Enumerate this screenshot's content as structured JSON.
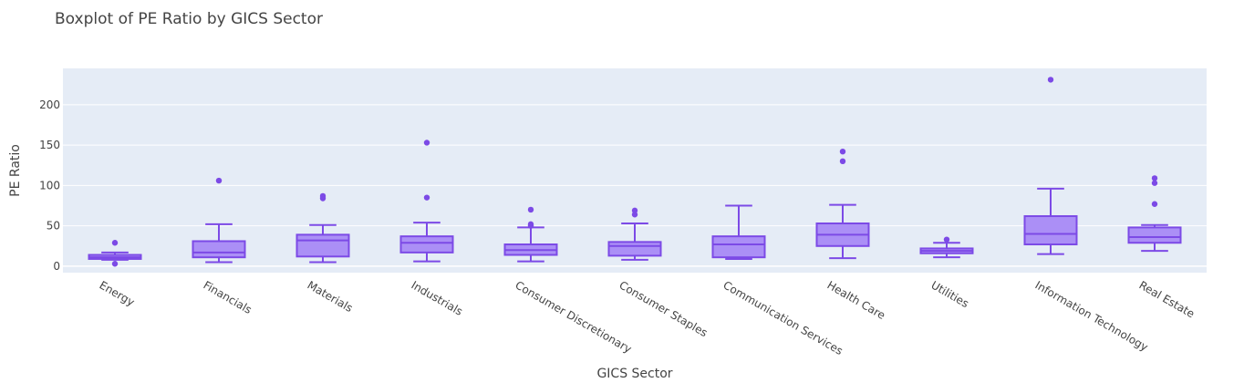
{
  "chart_data": {
    "type": "box",
    "title": "Boxplot of PE Ratio by GICS Sector",
    "xlabel": "GICS Sector",
    "ylabel": "PE Ratio",
    "ylim": [
      -8,
      245
    ],
    "yticks": [
      0,
      50,
      100,
      150,
      200
    ],
    "grid": true,
    "colors": {
      "box_fill": "#ab8ff6",
      "box_line": "#7c4ae6",
      "plot_bg": "#e5ecf6",
      "grid": "#ffffff",
      "text": "#444444"
    },
    "categories": [
      "Energy",
      "Financials",
      "Materials",
      "Industrials",
      "Consumer Discretionary",
      "Consumer Staples",
      "Communication Services",
      "Health Care",
      "Utilities",
      "Information Technology",
      "Real Estate"
    ],
    "boxes": [
      {
        "category": "Energy",
        "min": 8,
        "q1": 9,
        "median": 11,
        "q3": 14,
        "max": 17,
        "outliers": [
          29,
          3
        ]
      },
      {
        "category": "Financials",
        "min": 5,
        "q1": 11,
        "median": 17,
        "q3": 31,
        "max": 52,
        "outliers": [
          106
        ]
      },
      {
        "category": "Materials",
        "min": 5,
        "q1": 12,
        "median": 32,
        "q3": 39,
        "max": 51,
        "outliers": [
          87,
          84
        ]
      },
      {
        "category": "Industrials",
        "min": 6,
        "q1": 17,
        "median": 29,
        "q3": 37,
        "max": 54,
        "outliers": [
          153,
          85
        ]
      },
      {
        "category": "Consumer Discretionary",
        "min": 6,
        "q1": 14,
        "median": 20,
        "q3": 27,
        "max": 48,
        "outliers": [
          70,
          52,
          50
        ]
      },
      {
        "category": "Consumer Staples",
        "min": 8,
        "q1": 13,
        "median": 25,
        "q3": 30,
        "max": 53,
        "outliers": [
          69,
          64
        ]
      },
      {
        "category": "Communication Services",
        "min": 9,
        "q1": 11,
        "median": 27,
        "q3": 37,
        "max": 75,
        "outliers": []
      },
      {
        "category": "Health Care",
        "min": 10,
        "q1": 25,
        "median": 39,
        "q3": 53,
        "max": 76,
        "outliers": [
          142,
          130
        ]
      },
      {
        "category": "Utilities",
        "min": 11,
        "q1": 16,
        "median": 19,
        "q3": 22,
        "max": 29,
        "outliers": [
          33
        ]
      },
      {
        "category": "Information Technology",
        "min": 15,
        "q1": 27,
        "median": 40,
        "q3": 62,
        "max": 96,
        "outliers": [
          231
        ]
      },
      {
        "category": "Real Estate",
        "min": 19,
        "q1": 29,
        "median": 36,
        "q3": 48,
        "max": 51,
        "outliers": [
          109,
          103,
          77
        ]
      }
    ]
  }
}
